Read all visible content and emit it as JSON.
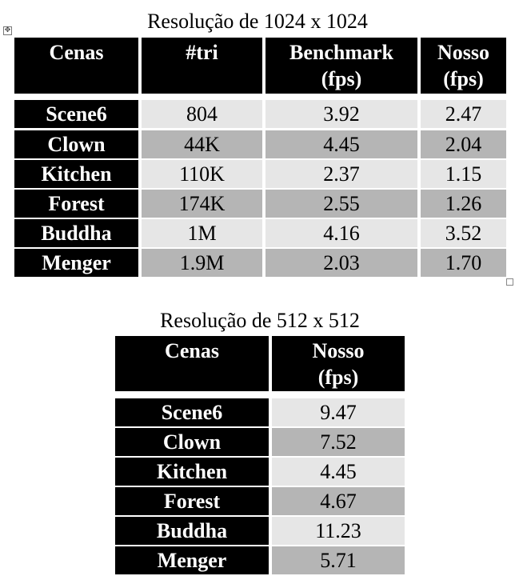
{
  "table1": {
    "title": "Resolução de 1024 x 1024",
    "headers": [
      "Cenas",
      "#tri",
      "Benchmark\n(fps)",
      "Nosso\n(fps)"
    ],
    "rows": [
      [
        "Scene6",
        "804",
        "3.92",
        "2.47"
      ],
      [
        "Clown",
        "44K",
        "4.45",
        "2.04"
      ],
      [
        "Kitchen",
        "110K",
        "2.37",
        "1.15"
      ],
      [
        "Forest",
        "174K",
        "2.55",
        "1.26"
      ],
      [
        "Buddha",
        "1M",
        "4.16",
        "3.52"
      ],
      [
        "Menger",
        "1.9M",
        "2.03",
        "1.70"
      ]
    ]
  },
  "table2": {
    "title": "Resolução de 512 x 512",
    "headers": [
      "Cenas",
      "Nosso\n(fps)"
    ],
    "rows": [
      [
        "Scene6",
        "9.47"
      ],
      [
        "Clown",
        "7.52"
      ],
      [
        "Kitchen",
        "4.45"
      ],
      [
        "Forest",
        "4.67"
      ],
      [
        "Buddha",
        "11.23"
      ],
      [
        "Menger",
        "5.71"
      ]
    ]
  },
  "icons": {
    "anchor": "move-anchor-icon",
    "resize": "resize-handle-icon"
  },
  "colors": {
    "header_bg": "#000000",
    "row_light": "#e6e6e6",
    "row_dark": "#b5b5b5"
  }
}
